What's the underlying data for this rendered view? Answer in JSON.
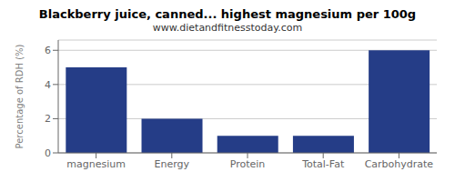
{
  "chart_data": {
    "type": "bar",
    "title": "Blackberry juice, canned... highest magnesium per 100g",
    "subtitle": "www.dietandfitnesstoday.com",
    "categories": [
      "magnesium",
      "Energy",
      "Protein",
      "Total-Fat",
      "Carbohydrate"
    ],
    "values": [
      5.0,
      2.0,
      1.0,
      1.0,
      6.0
    ],
    "color": "#253d87",
    "ylabel": "Percentage of RDH (%)",
    "ylim": [
      0,
      6.6
    ],
    "yticks": [
      0,
      2,
      4,
      6
    ],
    "grid": true
  }
}
